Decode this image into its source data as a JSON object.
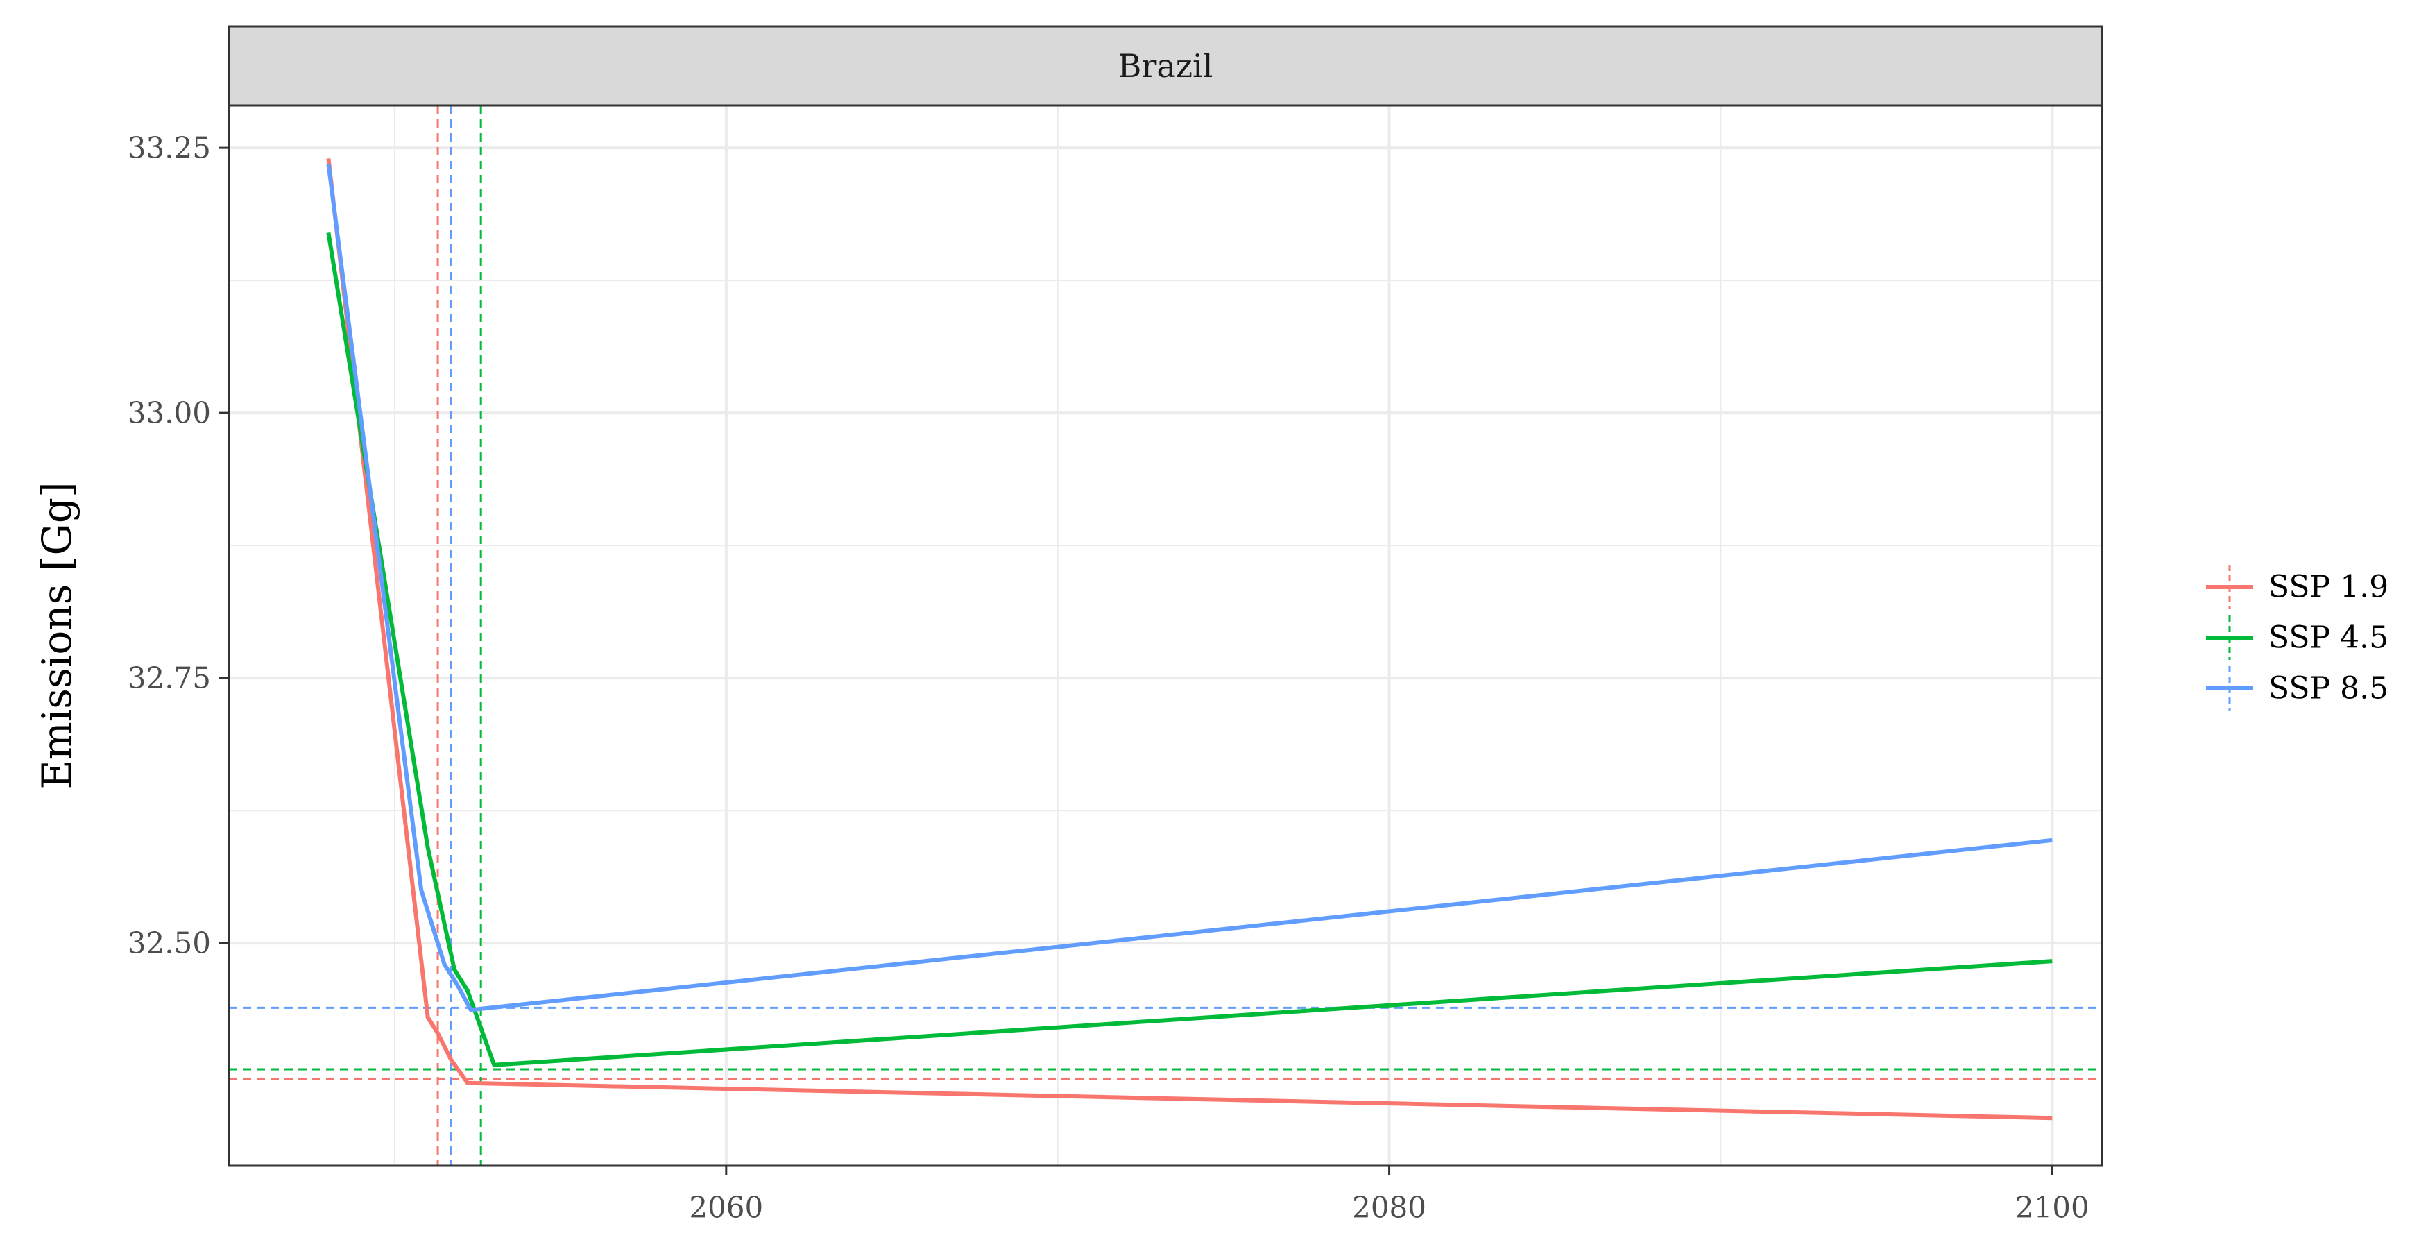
{
  "chart_data": {
    "type": "line",
    "panel_title": "Brazil",
    "xlabel": "",
    "ylabel": "Emissions [Gg]",
    "xlim": [
      2045,
      2101.5
    ],
    "ylim": [
      32.29,
      33.29
    ],
    "x_ticks": [
      2060,
      2080,
      2100
    ],
    "x_minor_ticks": [
      2050,
      2070,
      2090
    ],
    "y_ticks": [
      32.5,
      32.75,
      33.0,
      33.25
    ],
    "y_minor_ticks": [
      32.625,
      32.875,
      33.125
    ],
    "x_tick_labels": [
      "2060",
      "2080",
      "2100"
    ],
    "y_tick_labels": [
      "32.50",
      "32.75",
      "33.00",
      "33.25"
    ],
    "grid": true,
    "legend_position": "right",
    "series": [
      {
        "name": "SSP 1.9",
        "color": "#F8766D",
        "points": [
          [
            2048,
            33.24
          ],
          [
            2051,
            32.43
          ],
          [
            2051.3,
            32.415
          ],
          [
            2051.7,
            32.39
          ],
          [
            2052.2,
            32.368
          ],
          [
            2100,
            32.335
          ]
        ],
        "vline": 2051.3,
        "hline": 32.372
      },
      {
        "name": "SSP 4.5",
        "color": "#00BA38",
        "points": [
          [
            2048,
            33.17
          ],
          [
            2051,
            32.59
          ],
          [
            2051.8,
            32.475
          ],
          [
            2052.2,
            32.455
          ],
          [
            2053,
            32.385
          ],
          [
            2100,
            32.483
          ]
        ],
        "vline": 2052.6,
        "hline": 32.381
      },
      {
        "name": "SSP 8.5",
        "color": "#619CFF",
        "points": [
          [
            2048,
            33.235
          ],
          [
            2050.8,
            32.55
          ],
          [
            2051.5,
            32.48
          ],
          [
            2051.9,
            32.46
          ],
          [
            2052.3,
            32.437
          ],
          [
            2100,
            32.597
          ]
        ],
        "vline": 2051.7,
        "hline": 32.439
      }
    ]
  }
}
